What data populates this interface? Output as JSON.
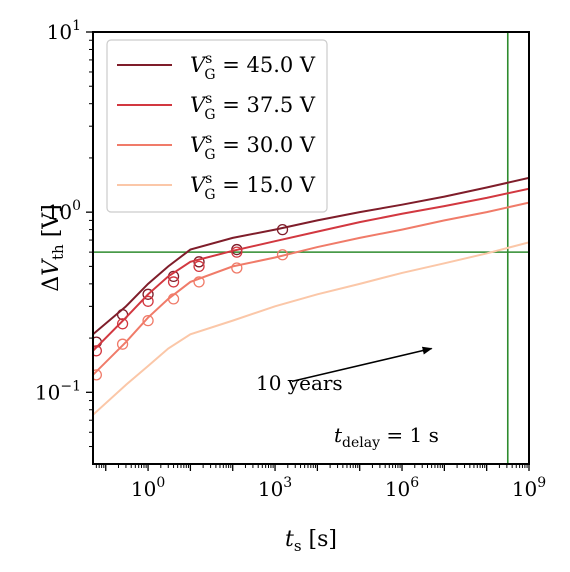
{
  "chart_data": {
    "type": "line",
    "x_scale": "log",
    "y_scale": "log",
    "xlim": [
      0.05,
      1000000000
    ],
    "ylim": [
      0.04,
      10
    ],
    "xlabel": {
      "main": "t",
      "sub": "s",
      "unit": "[s]"
    },
    "ylabel": {
      "main": "ΔV",
      "sub": "th",
      "unit": "[V]"
    },
    "x_ticks": [
      {
        "value": 1,
        "base": "10",
        "exp": "0"
      },
      {
        "value": 1000,
        "base": "10",
        "exp": "3"
      },
      {
        "value": 1000000,
        "base": "10",
        "exp": "6"
      },
      {
        "value": 1000000000,
        "base": "10",
        "exp": "9"
      }
    ],
    "y_ticks": [
      {
        "value": 0.1,
        "base": "10",
        "exp": "−1"
      },
      {
        "value": 1,
        "base": "10",
        "exp": "0"
      },
      {
        "value": 10,
        "base": "10",
        "exp": "1"
      }
    ],
    "legend": {
      "position": "upper-left",
      "prefix": "V",
      "sub": "G",
      "sup": "s"
    },
    "series": [
      {
        "name": "= 45.0 V",
        "color": "#7f1d2a",
        "line": {
          "x": [
            0.05,
            0.3,
            1,
            3,
            10,
            100,
            1000,
            10000,
            100000,
            1000000,
            10000000,
            100000000,
            1000000000
          ],
          "y": [
            0.21,
            0.3,
            0.4,
            0.5,
            0.62,
            0.72,
            0.8,
            0.9,
            1.0,
            1.1,
            1.22,
            1.37,
            1.55
          ]
        },
        "markers": {
          "x": [
            0.06,
            0.25,
            1,
            4,
            16,
            125,
            1500
          ],
          "y": [
            0.19,
            0.27,
            0.35,
            0.44,
            0.53,
            0.62,
            0.8
          ]
        }
      },
      {
        "name": "= 37.5 V",
        "color": "#d23840",
        "line": {
          "x": [
            0.05,
            0.3,
            1,
            3,
            10,
            100,
            1000,
            10000,
            100000,
            1000000,
            10000000,
            100000000,
            1000000000
          ],
          "y": [
            0.17,
            0.26,
            0.35,
            0.44,
            0.53,
            0.61,
            0.69,
            0.78,
            0.88,
            0.98,
            1.08,
            1.2,
            1.35
          ]
        },
        "markers": {
          "x": [
            0.06,
            0.25,
            1,
            4,
            16,
            125
          ],
          "y": [
            0.17,
            0.24,
            0.32,
            0.41,
            0.5,
            0.6
          ]
        }
      },
      {
        "name": "= 30.0 V",
        "color": "#f07b69",
        "line": {
          "x": [
            0.05,
            0.3,
            1,
            3,
            10,
            100,
            1000,
            10000,
            100000,
            1000000,
            10000000,
            100000000,
            1000000000
          ],
          "y": [
            0.125,
            0.19,
            0.26,
            0.33,
            0.41,
            0.5,
            0.56,
            0.64,
            0.72,
            0.8,
            0.9,
            1.0,
            1.13
          ]
        },
        "markers": {
          "x": [
            0.06,
            0.25,
            1,
            4,
            16,
            125,
            1500
          ],
          "y": [
            0.125,
            0.185,
            0.25,
            0.33,
            0.41,
            0.49,
            0.58
          ]
        }
      },
      {
        "name": "= 15.0 V",
        "color": "#fbc7a8",
        "line": {
          "x": [
            0.05,
            0.3,
            1,
            3,
            10,
            100,
            1000,
            10000,
            100000,
            1000000,
            10000000,
            100000000,
            1000000000
          ],
          "y": [
            0.075,
            0.11,
            0.14,
            0.175,
            0.21,
            0.25,
            0.3,
            0.35,
            0.4,
            0.46,
            0.52,
            0.59,
            0.68
          ]
        },
        "markers": {
          "x": [],
          "y": []
        }
      }
    ],
    "reference_lines": {
      "horizontal_y": 0.6,
      "vertical_x": 315000000,
      "color": "#2e8b2e"
    },
    "annotations": {
      "years_label": "10 years",
      "arrow_from": {
        "x": 2500,
        "y": 0.115
      },
      "arrow_to": {
        "x": 5000000,
        "y": 0.175
      },
      "delay": {
        "main": "t",
        "sub": "delay",
        "rest": "= 1 s"
      }
    }
  }
}
